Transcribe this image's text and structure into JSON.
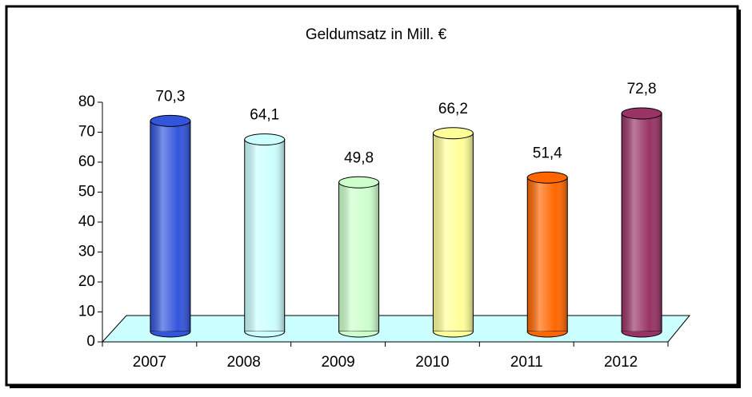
{
  "chart_data": {
    "type": "bar3d",
    "title": "Geldumsatz in Mill. €",
    "categories": [
      "2007",
      "2008",
      "2009",
      "2010",
      "2011",
      "2012"
    ],
    "values": [
      70.3,
      64.1,
      49.8,
      66.2,
      51.4,
      72.8
    ],
    "value_labels": [
      "70,3",
      "64,1",
      "49,8",
      "66,2",
      "51,4",
      "72,8"
    ],
    "colors": [
      "#3355dd",
      "#ccffff",
      "#ccffcc",
      "#ffff99",
      "#ff6600",
      "#993366"
    ],
    "ylim": [
      0,
      80
    ],
    "yticks": [
      0,
      10,
      20,
      30,
      40,
      50,
      60,
      70,
      80
    ],
    "grid": false
  }
}
